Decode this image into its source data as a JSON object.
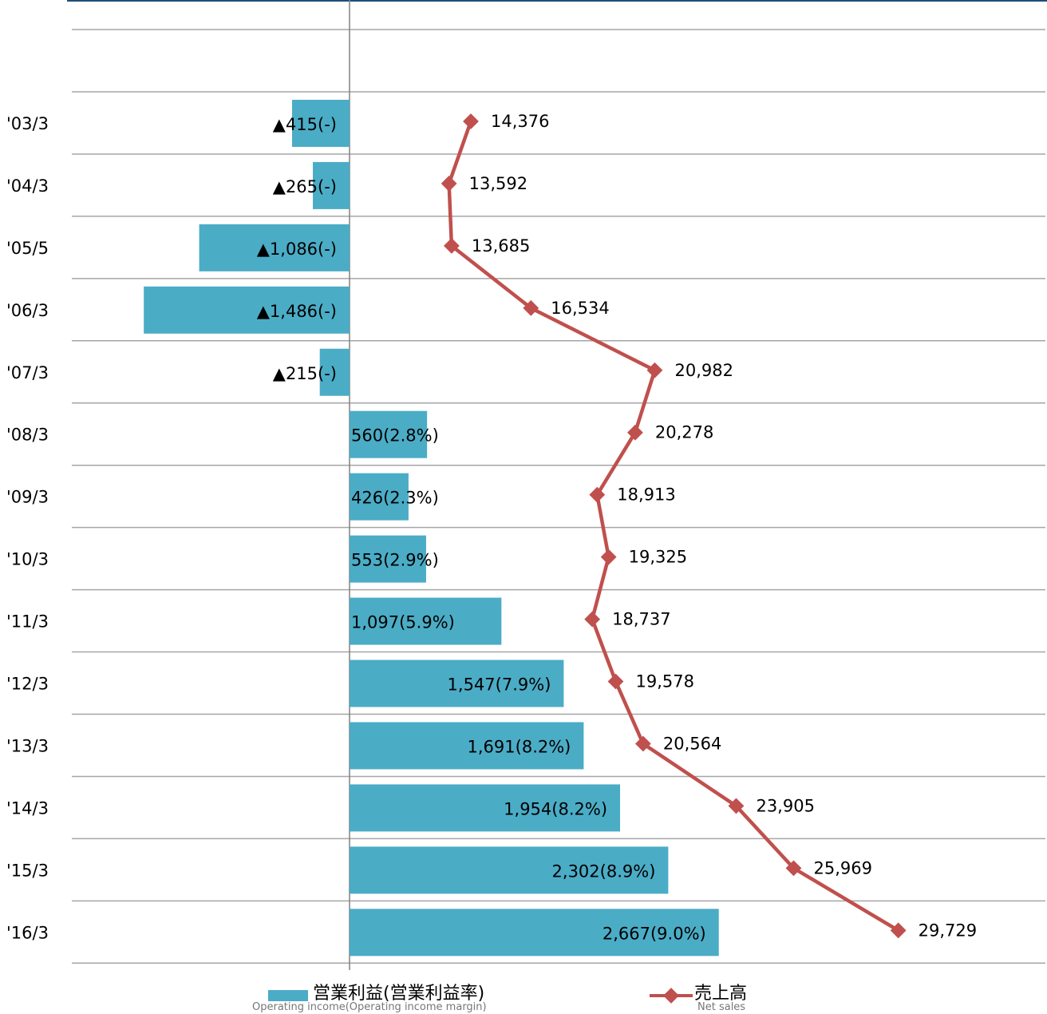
{
  "colors": {
    "bar": "#4bacc6",
    "line": "#c0504d",
    "grid": "#a6a6a6",
    "axis": "#808080",
    "top_border": "#1f4e79"
  },
  "chart_data": {
    "type": "bar",
    "orientation": "horizontal",
    "categories": [
      "'03/3",
      "'04/3",
      "'05/5",
      "'06/3",
      "'07/3",
      "'08/3",
      "'09/3",
      "'10/3",
      "'11/3",
      "'12/3",
      "'13/3",
      "'14/3",
      "'15/3",
      "'16/3"
    ],
    "series": [
      {
        "name": "営業利益(営業利益率)",
        "type": "bar",
        "values": [
          -415,
          -265,
          -1086,
          -1486,
          -215,
          560,
          426,
          553,
          1097,
          1547,
          1691,
          1954,
          2302,
          2667
        ],
        "labels": [
          "▲415(-)",
          "▲265(-)",
          "▲1,086(-)",
          "▲1,486(-)",
          "▲215(-)",
          "560(2.8%)",
          "426(2.3%)",
          "553(2.9%)",
          "1,097(5.9%)",
          "1,547(7.9%)",
          "1,691(8.2%)",
          "1,954(8.2%)",
          "2,302(8.9%)",
          "2,667(9.0%)"
        ]
      },
      {
        "name": "売上高",
        "type": "line",
        "values": [
          14376,
          13592,
          13685,
          16534,
          20982,
          20278,
          18913,
          19325,
          18737,
          19578,
          20564,
          23905,
          25969,
          29729
        ],
        "labels": [
          "14,376",
          "13,592",
          "13,685",
          "16,534",
          "20,982",
          "20,278",
          "18,913",
          "19,325",
          "18,737",
          "19,578",
          "20,564",
          "23,905",
          "25,969",
          "29,729"
        ]
      }
    ]
  },
  "legend": {
    "bar_label": "営業利益(営業利益率)",
    "bar_sub": "Operating income(Operating income margin)",
    "line_label": "売上高",
    "line_sub": "Net sales"
  }
}
